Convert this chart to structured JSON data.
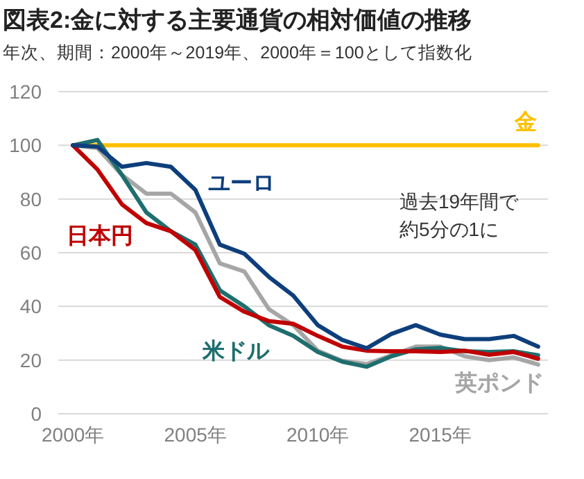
{
  "chart_data": {
    "type": "line",
    "title": "図表2:金に対する主要通貨の相対価値の推移",
    "subtitle": "年次、期間：2000年～2019年、2000年＝100として指数化",
    "x": [
      2000,
      2001,
      2002,
      2003,
      2004,
      2005,
      2006,
      2007,
      2008,
      2009,
      2010,
      2011,
      2012,
      2013,
      2014,
      2015,
      2016,
      2017,
      2018,
      2019
    ],
    "xlim": [
      1999.4,
      2019.4
    ],
    "xticks": [
      {
        "value": 2000,
        "label": "2000年"
      },
      {
        "value": 2005,
        "label": "2005年"
      },
      {
        "value": 2010,
        "label": "2010年"
      },
      {
        "value": 2015,
        "label": "2015年"
      }
    ],
    "ylim": [
      0,
      120
    ],
    "yticks": [
      0,
      20,
      40,
      60,
      80,
      100,
      120
    ],
    "grid": "y",
    "series": [
      {
        "name": "金",
        "color": "#ffc000",
        "values": [
          100,
          100,
          100,
          100,
          100,
          100,
          100,
          100,
          100,
          100,
          100,
          100,
          100,
          100,
          100,
          100,
          100,
          100,
          100,
          100
        ]
      },
      {
        "name": "英ポンド",
        "color": "#a6a6a6",
        "values": [
          100,
          99,
          89,
          82,
          82,
          75,
          56,
          53,
          39,
          33,
          23.5,
          19.7,
          18.5,
          21.8,
          25,
          25,
          21.4,
          20,
          21,
          18.3
        ]
      },
      {
        "name": "米ドル",
        "color": "#1f6e6e",
        "values": [
          100,
          102,
          89,
          75,
          68,
          63,
          46,
          40,
          33,
          29,
          23,
          19.4,
          17.5,
          21.4,
          24,
          24.5,
          23.3,
          23,
          23.3,
          21.8
        ]
      },
      {
        "name": "日本円",
        "color": "#c00000",
        "values": [
          100,
          91,
          78,
          71,
          68,
          61,
          43.5,
          38,
          34.5,
          33.5,
          29,
          25,
          23.5,
          23.3,
          23.3,
          23,
          23.5,
          22,
          23,
          20.5
        ]
      },
      {
        "name": "ユーロ",
        "color": "#0e3f7c",
        "values": [
          100,
          99.5,
          92,
          93.4,
          92,
          83.4,
          63,
          59.6,
          51,
          44,
          33,
          27.5,
          24.4,
          29.7,
          33,
          29.5,
          27.8,
          27.8,
          29,
          25
        ]
      }
    ],
    "annotations": [
      "過去19年間で",
      "約5分の1に"
    ]
  }
}
